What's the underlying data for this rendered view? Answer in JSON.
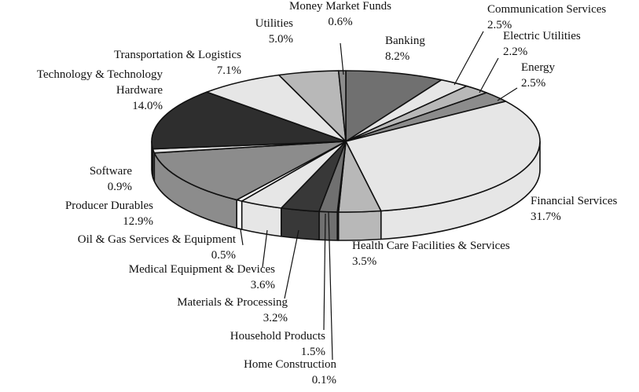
{
  "chart_data": {
    "type": "pie",
    "categories": [
      "Banking",
      "Communication Services",
      "Electric Utilities",
      "Energy",
      "Financial Services",
      "Health Care Facilities & Services",
      "Home Construction",
      "Household Products",
      "Materials & Processing",
      "Medical Equipment & Devices",
      "Oil & Gas Services & Equipment",
      "Producer Durables",
      "Software",
      "Technology & Technology Hardware",
      "Transportation & Logistics",
      "Utilities",
      "Money Market Funds"
    ],
    "values": [
      8.2,
      2.5,
      2.2,
      2.5,
      31.7,
      3.5,
      0.1,
      1.5,
      3.2,
      3.6,
      0.5,
      12.9,
      0.9,
      14.0,
      7.1,
      5.0,
      0.6
    ],
    "value_labels": [
      "8.2%",
      "2.5%",
      "2.2%",
      "2.5%",
      "31.7%",
      "3.5%",
      "0.1%",
      "1.5%",
      "3.2%",
      "3.6%",
      "0.5%",
      "12.9%",
      "0.9%",
      "14.0%",
      "7.1%",
      "5.0%",
      "0.6%"
    ],
    "colors": [
      "#707070",
      "#e6e6e6",
      "#b8b8b8",
      "#8c8c8c",
      "#e6e6e6",
      "#b8b8b8",
      "#707070",
      "#707070",
      "#383838",
      "#e6e6e6",
      "#ffffff",
      "#8c8c8c",
      "#e6e6e6",
      "#2e2e2e",
      "#e6e6e6",
      "#b8b8b8",
      "#8c8c8c"
    ]
  }
}
